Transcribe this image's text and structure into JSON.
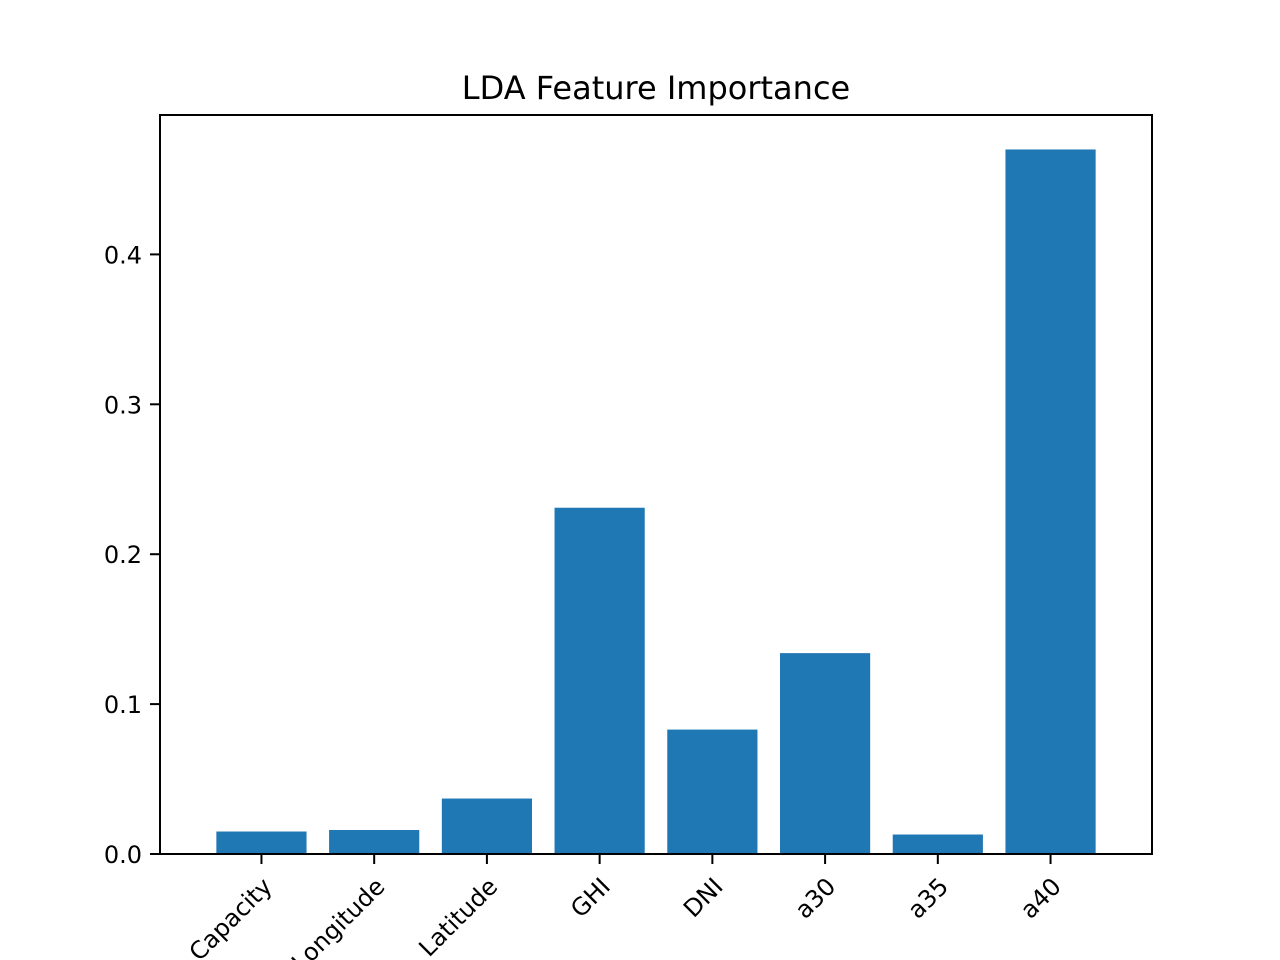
{
  "chart_data": {
    "type": "bar",
    "title": "LDA Feature Importance",
    "xlabel": "",
    "ylabel": "",
    "categories": [
      "Capacity",
      "Longitude",
      "Latitude",
      "GHI",
      "DNI",
      "a30",
      "a35",
      "a40"
    ],
    "values": [
      0.015,
      0.016,
      0.037,
      0.231,
      0.083,
      0.134,
      0.013,
      0.47
    ],
    "ylim": [
      0,
      0.493
    ],
    "yticks": [
      0.0,
      0.1,
      0.2,
      0.3,
      0.4
    ],
    "ytick_labels": [
      "0.0",
      "0.1",
      "0.2",
      "0.3",
      "0.4"
    ],
    "xtick_rotation_deg": 45,
    "grid": false,
    "legend": "none",
    "bar_color": "#1f77b4"
  }
}
